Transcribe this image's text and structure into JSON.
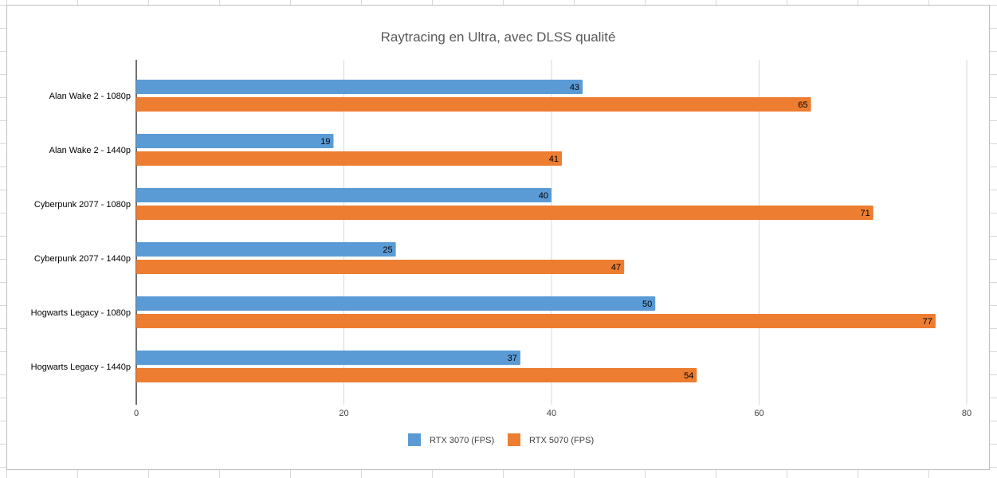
{
  "chart_data": {
    "type": "bar",
    "orientation": "horizontal",
    "title": "Raytracing en Ultra, avec DLSS qualité",
    "categories": [
      "Alan Wake 2 - 1080p",
      "Alan Wake 2 - 1440p",
      "Cyberpunk 2077 - 1080p",
      "Cyberpunk 2077 - 1440p",
      "Hogwarts Legacy - 1080p",
      "Hogwarts Legacy - 1440p"
    ],
    "series": [
      {
        "name": "RTX 3070 (FPS)",
        "color": "#5b9bd5",
        "values": [
          43,
          19,
          40,
          25,
          50,
          37
        ]
      },
      {
        "name": "RTX 5070 (FPS)",
        "color": "#ed7d31",
        "values": [
          65,
          41,
          71,
          47,
          77,
          54
        ]
      }
    ],
    "xlim": [
      0,
      80
    ],
    "xticks": [
      0,
      20,
      40,
      60,
      80
    ],
    "grid": true,
    "legend": "bottom"
  }
}
